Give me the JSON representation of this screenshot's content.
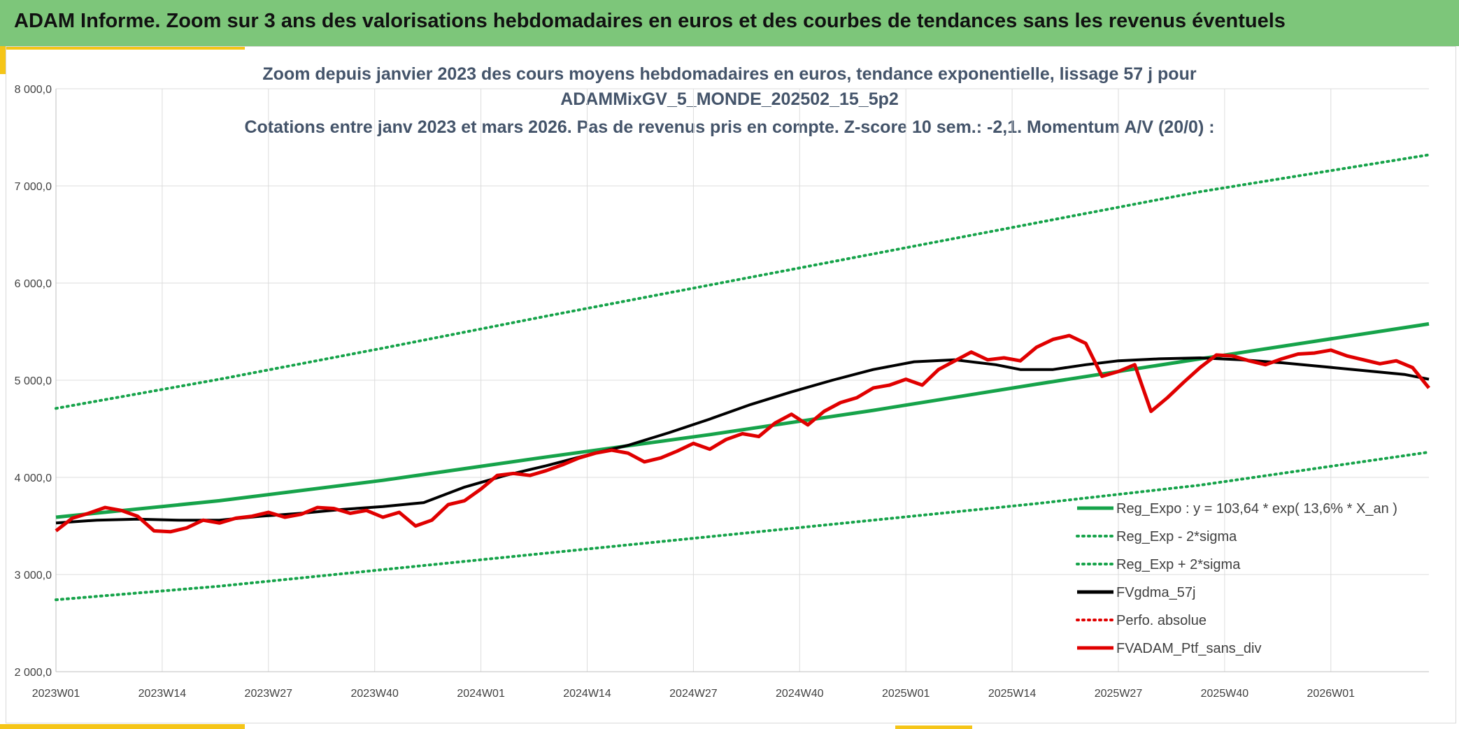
{
  "header": {
    "title": "ADAM Informe. Zoom sur 3 ans des valorisations hebdomadaires en euros et des courbes de tendances sans les revenus éventuels"
  },
  "colors": {
    "banner": "#7dc67a",
    "accent": "#f5c518",
    "trend": "#16a34a",
    "band": "#16a34a",
    "smooth": "#000000",
    "perf": "#e00000",
    "grid": "#dcdcdc"
  },
  "chart_data": {
    "type": "line",
    "title_lines": [
      "Zoom depuis janvier 2023 des cours moyens hebdomadaires en euros, tendance exponentielle, lissage 57 j pour",
      "ADAMMixGV_5_MONDE_202502_15_5p2",
      "Cotations entre janv 2023 et mars 2026. Pas de revenus pris en compte. Z-score 10 sem.: -2,1. Momentum A/V (20/0) :"
    ],
    "xlabel": "",
    "ylabel": "",
    "ylim": [
      2000,
      8000
    ],
    "xlim": [
      0,
      168
    ],
    "yticks": [
      {
        "value": 2000,
        "label": "2 000,0"
      },
      {
        "value": 3000,
        "label": "3 000,0"
      },
      {
        "value": 4000,
        "label": "4 000,0"
      },
      {
        "value": 5000,
        "label": "5 000,0"
      },
      {
        "value": 6000,
        "label": "6 000,0"
      },
      {
        "value": 7000,
        "label": "7 000,0"
      },
      {
        "value": 8000,
        "label": "8 000,0"
      }
    ],
    "xticks": [
      {
        "value": 0,
        "label": "2023W01"
      },
      {
        "value": 13,
        "label": "2023W14"
      },
      {
        "value": 26,
        "label": "2023W27"
      },
      {
        "value": 39,
        "label": "2023W40"
      },
      {
        "value": 52,
        "label": "2024W01"
      },
      {
        "value": 65,
        "label": "2024W14"
      },
      {
        "value": 78,
        "label": "2024W27"
      },
      {
        "value": 91,
        "label": "2024W40"
      },
      {
        "value": 104,
        "label": "2025W01"
      },
      {
        "value": 117,
        "label": "2025W14"
      },
      {
        "value": 130,
        "label": "2025W27"
      },
      {
        "value": 143,
        "label": "2025W40"
      },
      {
        "value": 156,
        "label": "2026W01"
      }
    ],
    "legend_position": "bottom-right",
    "legend": [
      {
        "key": "trend",
        "label": "Reg_Expo : y = 103,64 * exp( 13,6% *  X_an )"
      },
      {
        "key": "lower",
        "label": "Reg_Exp - 2*sigma"
      },
      {
        "key": "upper",
        "label": "Reg_Exp + 2*sigma"
      },
      {
        "key": "smooth",
        "label": "FVgdma_57j"
      },
      {
        "key": "perf",
        "label": "Perfo. absolue"
      },
      {
        "key": "ptf",
        "label": "FVADAM_Ptf_sans_div"
      }
    ],
    "series": [
      {
        "key": "trend",
        "name": "Reg_Expo",
        "style": "solid",
        "width": 5,
        "color": "#16a34a",
        "points": [
          [
            0,
            3590
          ],
          [
            20,
            3760
          ],
          [
            40,
            3970
          ],
          [
            60,
            4210
          ],
          [
            80,
            4440
          ],
          [
            100,
            4690
          ],
          [
            120,
            4960
          ],
          [
            140,
            5220
          ],
          [
            168,
            5580
          ]
        ]
      },
      {
        "key": "upper",
        "name": "Reg_Exp + 2*sigma",
        "style": "dotted",
        "width": 4,
        "color": "#16a34a",
        "points": [
          [
            0,
            4710
          ],
          [
            20,
            5010
          ],
          [
            40,
            5330
          ],
          [
            60,
            5660
          ],
          [
            80,
            5980
          ],
          [
            100,
            6300
          ],
          [
            120,
            6620
          ],
          [
            140,
            6940
          ],
          [
            168,
            7320
          ]
        ]
      },
      {
        "key": "lower",
        "name": "Reg_Exp - 2*sigma",
        "style": "dotted",
        "width": 4,
        "color": "#16a34a",
        "points": [
          [
            0,
            2740
          ],
          [
            20,
            2880
          ],
          [
            40,
            3050
          ],
          [
            60,
            3220
          ],
          [
            80,
            3390
          ],
          [
            100,
            3560
          ],
          [
            120,
            3730
          ],
          [
            140,
            3920
          ],
          [
            168,
            4260
          ]
        ]
      },
      {
        "key": "smooth",
        "name": "FVgdma_57j",
        "style": "solid",
        "width": 4,
        "color": "#000000",
        "points": [
          [
            0,
            3530
          ],
          [
            5,
            3560
          ],
          [
            10,
            3570
          ],
          [
            15,
            3560
          ],
          [
            20,
            3560
          ],
          [
            25,
            3600
          ],
          [
            30,
            3630
          ],
          [
            35,
            3670
          ],
          [
            40,
            3700
          ],
          [
            45,
            3740
          ],
          [
            50,
            3900
          ],
          [
            55,
            4020
          ],
          [
            60,
            4120
          ],
          [
            65,
            4230
          ],
          [
            70,
            4330
          ],
          [
            75,
            4460
          ],
          [
            80,
            4600
          ],
          [
            85,
            4750
          ],
          [
            90,
            4880
          ],
          [
            95,
            5000
          ],
          [
            100,
            5110
          ],
          [
            105,
            5190
          ],
          [
            110,
            5210
          ],
          [
            115,
            5160
          ],
          [
            118,
            5110
          ],
          [
            122,
            5110
          ],
          [
            126,
            5160
          ],
          [
            130,
            5200
          ],
          [
            135,
            5220
          ],
          [
            140,
            5230
          ],
          [
            145,
            5210
          ],
          [
            150,
            5180
          ],
          [
            155,
            5140
          ],
          [
            160,
            5100
          ],
          [
            165,
            5060
          ],
          [
            168,
            5010
          ]
        ]
      },
      {
        "key": "ptf",
        "name": "FVADAM_Ptf_sans_div",
        "style": "solid",
        "width": 5,
        "color": "#e00000",
        "points": [
          [
            0,
            3450
          ],
          [
            2,
            3580
          ],
          [
            4,
            3630
          ],
          [
            6,
            3690
          ],
          [
            8,
            3660
          ],
          [
            10,
            3600
          ],
          [
            12,
            3450
          ],
          [
            14,
            3440
          ],
          [
            16,
            3480
          ],
          [
            18,
            3560
          ],
          [
            20,
            3530
          ],
          [
            22,
            3580
          ],
          [
            24,
            3600
          ],
          [
            26,
            3640
          ],
          [
            28,
            3590
          ],
          [
            30,
            3620
          ],
          [
            32,
            3690
          ],
          [
            34,
            3680
          ],
          [
            36,
            3630
          ],
          [
            38,
            3660
          ],
          [
            40,
            3590
          ],
          [
            42,
            3640
          ],
          [
            44,
            3500
          ],
          [
            46,
            3560
          ],
          [
            48,
            3720
          ],
          [
            50,
            3760
          ],
          [
            52,
            3880
          ],
          [
            54,
            4020
          ],
          [
            56,
            4040
          ],
          [
            58,
            4020
          ],
          [
            60,
            4070
          ],
          [
            62,
            4130
          ],
          [
            64,
            4200
          ],
          [
            66,
            4250
          ],
          [
            68,
            4280
          ],
          [
            70,
            4250
          ],
          [
            72,
            4160
          ],
          [
            74,
            4200
          ],
          [
            76,
            4270
          ],
          [
            78,
            4350
          ],
          [
            80,
            4290
          ],
          [
            82,
            4390
          ],
          [
            84,
            4450
          ],
          [
            86,
            4420
          ],
          [
            88,
            4560
          ],
          [
            90,
            4650
          ],
          [
            92,
            4540
          ],
          [
            94,
            4680
          ],
          [
            96,
            4770
          ],
          [
            98,
            4820
          ],
          [
            100,
            4920
          ],
          [
            102,
            4950
          ],
          [
            104,
            5010
          ],
          [
            106,
            4950
          ],
          [
            108,
            5110
          ],
          [
            110,
            5200
          ],
          [
            112,
            5290
          ],
          [
            114,
            5210
          ],
          [
            116,
            5230
          ],
          [
            118,
            5200
          ],
          [
            120,
            5340
          ],
          [
            122,
            5420
          ],
          [
            124,
            5460
          ],
          [
            126,
            5380
          ],
          [
            128,
            5040
          ],
          [
            130,
            5090
          ],
          [
            132,
            5160
          ],
          [
            134,
            4680
          ],
          [
            136,
            4820
          ],
          [
            138,
            4980
          ],
          [
            140,
            5130
          ],
          [
            142,
            5260
          ],
          [
            144,
            5250
          ],
          [
            146,
            5200
          ],
          [
            148,
            5160
          ],
          [
            150,
            5220
          ],
          [
            152,
            5270
          ],
          [
            154,
            5280
          ],
          [
            156,
            5310
          ],
          [
            158,
            5250
          ],
          [
            160,
            5210
          ],
          [
            162,
            5170
          ],
          [
            164,
            5200
          ],
          [
            166,
            5130
          ],
          [
            168,
            4920
          ]
        ]
      }
    ]
  }
}
